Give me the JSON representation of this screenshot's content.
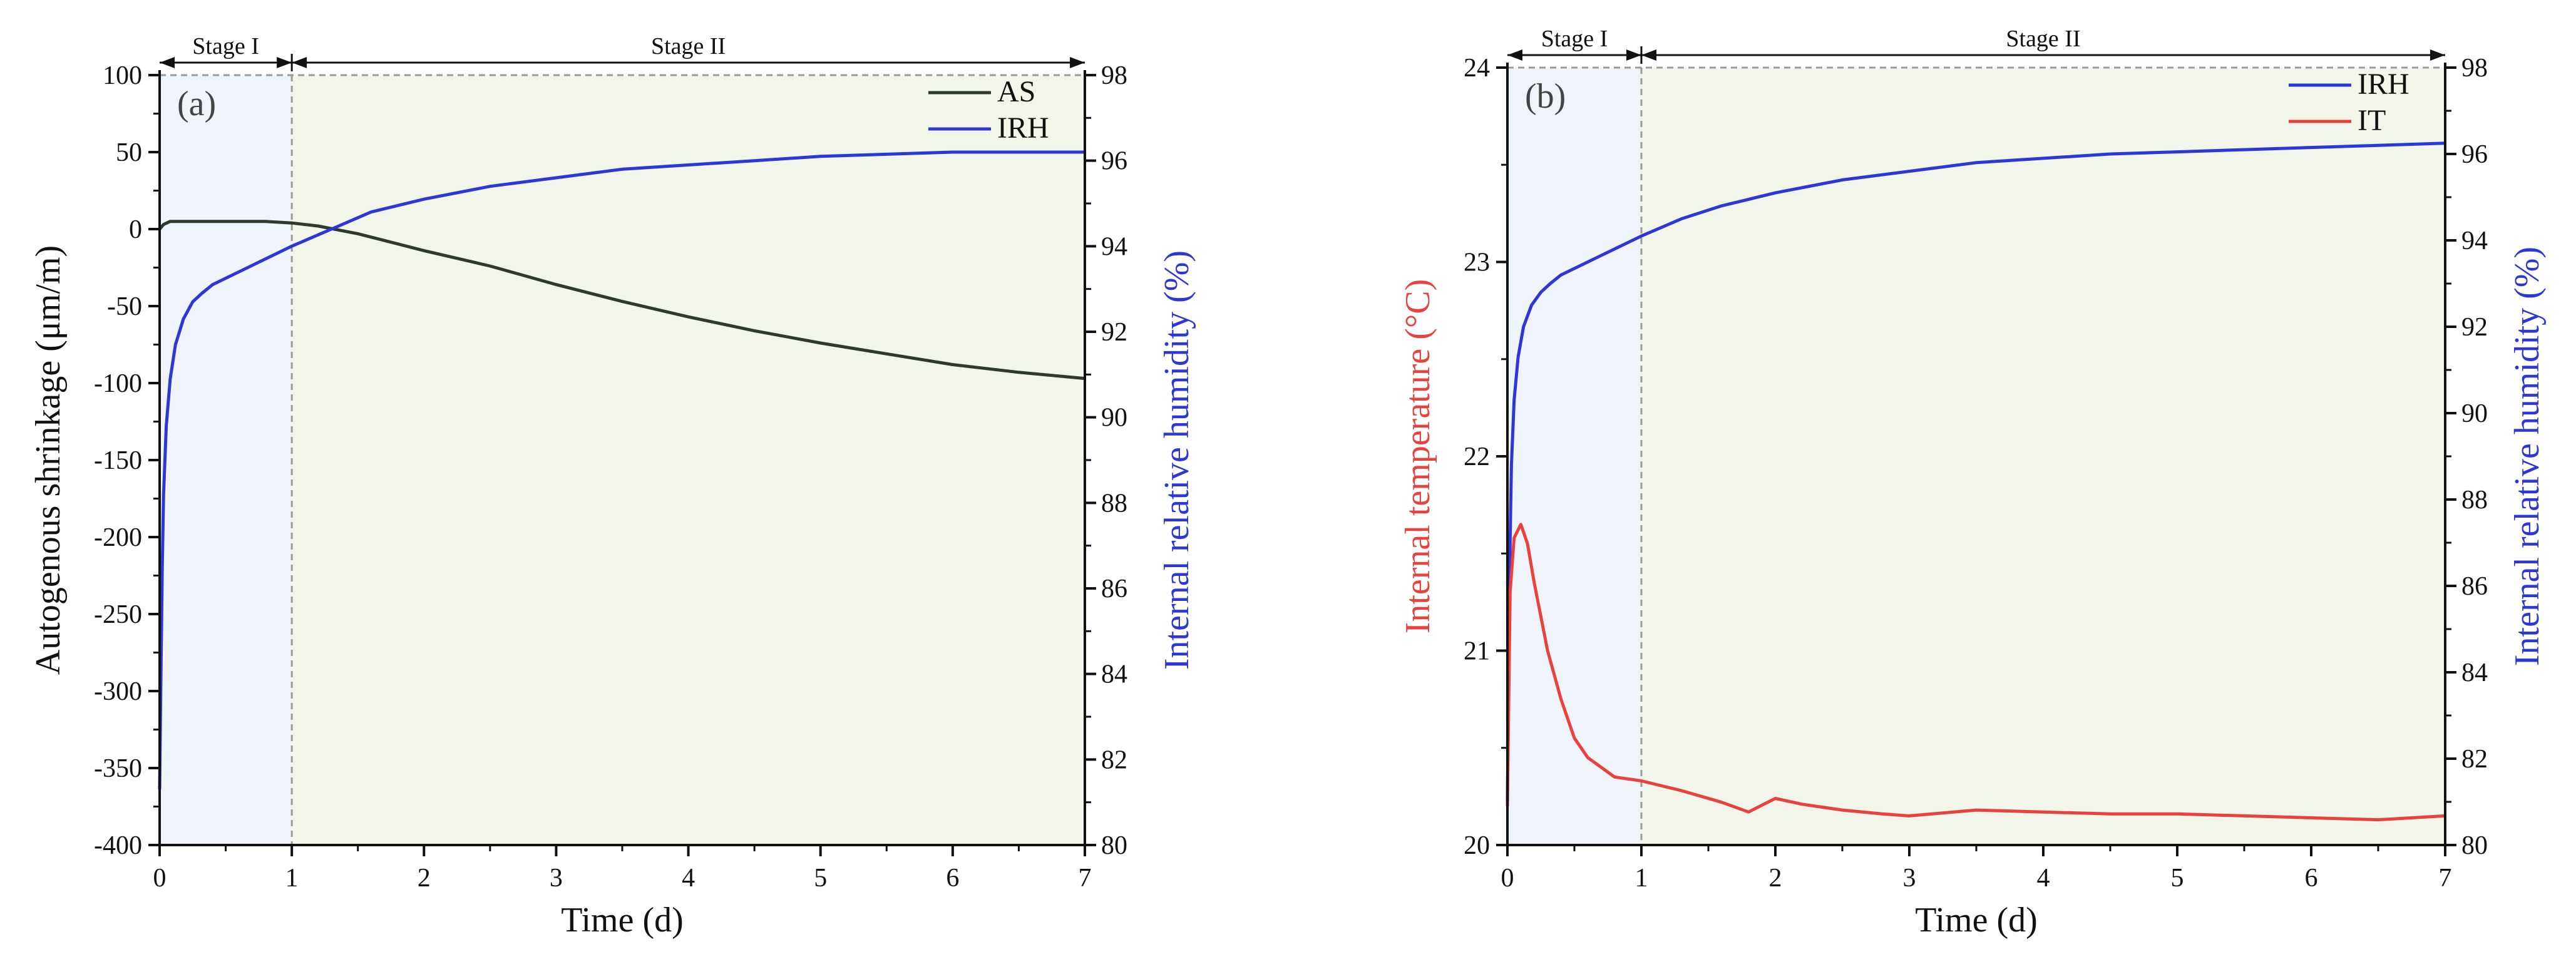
{
  "colors": {
    "as": "#2f3a2f",
    "irh": "#2e36d6",
    "it": "#e8423e",
    "stage1_bg": "#eef4f9",
    "stage2_bg": "#f2f6ea",
    "axis": "#111111",
    "dash": "#9a9a9a"
  },
  "chart_data": [
    {
      "type": "line",
      "panel_label": "(a)",
      "xlabel": "Time (d)",
      "ylabel_left": "Autogenous shrinkage (μm/m)",
      "ylabel_right": "Internal relative humidity (%)",
      "xlim": [
        0,
        7
      ],
      "ylim_left": [
        -400,
        100
      ],
      "ylim_right": [
        80,
        98
      ],
      "x_ticks": [
        "0",
        "1",
        "2",
        "3",
        "4",
        "5",
        "6",
        "7"
      ],
      "y_ticks_left": [
        "100",
        "50",
        "0",
        "-50",
        "-100",
        "-150",
        "-200",
        "-250",
        "-300",
        "-350",
        "-400"
      ],
      "y_ticks_right": [
        "98",
        "96",
        "94",
        "92",
        "90",
        "88",
        "86",
        "84",
        "82",
        "80"
      ],
      "stages": [
        {
          "label": "Stage I",
          "from": 0,
          "to": 1
        },
        {
          "label": "Stage II",
          "from": 1,
          "to": 7
        }
      ],
      "legend": [
        "AS",
        "IRH"
      ],
      "series": [
        {
          "name": "AS",
          "axis": "left",
          "x": [
            0,
            0.03,
            0.08,
            0.2,
            0.5,
            0.8,
            1.0,
            1.2,
            1.5,
            2.0,
            2.5,
            3.0,
            3.5,
            4.0,
            4.5,
            5.0,
            5.5,
            6.0,
            6.5,
            7.0
          ],
          "values": [
            0,
            3,
            5,
            5,
            5,
            5,
            4,
            2,
            -3,
            -14,
            -24,
            -36,
            -47,
            -57,
            -66,
            -74,
            -81,
            -88,
            -93,
            -97
          ]
        },
        {
          "name": "IRH",
          "axis": "right",
          "x": [
            0,
            0.01,
            0.02,
            0.03,
            0.05,
            0.08,
            0.12,
            0.18,
            0.25,
            0.32,
            0.4,
            0.6,
            0.8,
            1.0,
            1.3,
            1.6,
            2.0,
            2.5,
            3.0,
            3.5,
            4.0,
            4.5,
            5.0,
            5.5,
            6.0,
            6.5,
            7.0
          ],
          "values": [
            81.3,
            84.0,
            86.5,
            88.2,
            89.8,
            90.9,
            91.7,
            92.3,
            92.7,
            92.9,
            93.1,
            93.4,
            93.7,
            94.0,
            94.4,
            94.8,
            95.1,
            95.4,
            95.6,
            95.8,
            95.9,
            96.0,
            96.1,
            96.15,
            96.2,
            96.2,
            96.2
          ]
        }
      ]
    },
    {
      "type": "line",
      "panel_label": "(b)",
      "xlabel": "Time (d)",
      "ylabel_left": "Internal temperature (°C)",
      "ylabel_right": "Internal relative humidity (%)",
      "xlim": [
        0,
        7
      ],
      "ylim_left": [
        20,
        24
      ],
      "ylim_right": [
        80,
        98
      ],
      "x_ticks": [
        "0",
        "1",
        "2",
        "3",
        "4",
        "5",
        "6",
        "7"
      ],
      "y_ticks_left": [
        "24",
        "23",
        "22",
        "21",
        "20"
      ],
      "y_ticks_right": [
        "98",
        "96",
        "94",
        "92",
        "90",
        "88",
        "86",
        "84",
        "82",
        "80"
      ],
      "stages": [
        {
          "label": "Stage I",
          "from": 0,
          "to": 1
        },
        {
          "label": "Stage II",
          "from": 1,
          "to": 7
        }
      ],
      "legend": [
        "IRH",
        "IT"
      ],
      "series": [
        {
          "name": "IRH",
          "axis": "right",
          "x": [
            0,
            0.01,
            0.02,
            0.03,
            0.05,
            0.08,
            0.12,
            0.18,
            0.25,
            0.32,
            0.4,
            0.6,
            0.8,
            1.0,
            1.3,
            1.6,
            2.0,
            2.5,
            3.0,
            3.5,
            4.0,
            4.5,
            5.0,
            5.5,
            6.0,
            6.5,
            7.0
          ],
          "values": [
            81.0,
            84.5,
            87.0,
            88.8,
            90.3,
            91.3,
            92.0,
            92.5,
            92.8,
            93.0,
            93.2,
            93.5,
            93.8,
            94.1,
            94.5,
            94.8,
            95.1,
            95.4,
            95.6,
            95.8,
            95.9,
            96.0,
            96.05,
            96.1,
            96.15,
            96.2,
            96.25
          ]
        },
        {
          "name": "IT",
          "axis": "left",
          "x": [
            0,
            0.02,
            0.05,
            0.1,
            0.15,
            0.2,
            0.3,
            0.4,
            0.5,
            0.6,
            0.8,
            1.0,
            1.3,
            1.6,
            1.8,
            2.0,
            2.2,
            2.5,
            2.8,
            3.0,
            3.5,
            4.0,
            4.5,
            5.0,
            5.5,
            6.0,
            6.5,
            7.0
          ],
          "values": [
            20.2,
            21.3,
            21.58,
            21.65,
            21.55,
            21.35,
            21.0,
            20.75,
            20.55,
            20.45,
            20.35,
            20.33,
            20.28,
            20.22,
            20.17,
            20.24,
            20.21,
            20.18,
            20.16,
            20.15,
            20.18,
            20.17,
            20.16,
            20.16,
            20.15,
            20.14,
            20.13,
            20.15
          ]
        }
      ]
    }
  ]
}
